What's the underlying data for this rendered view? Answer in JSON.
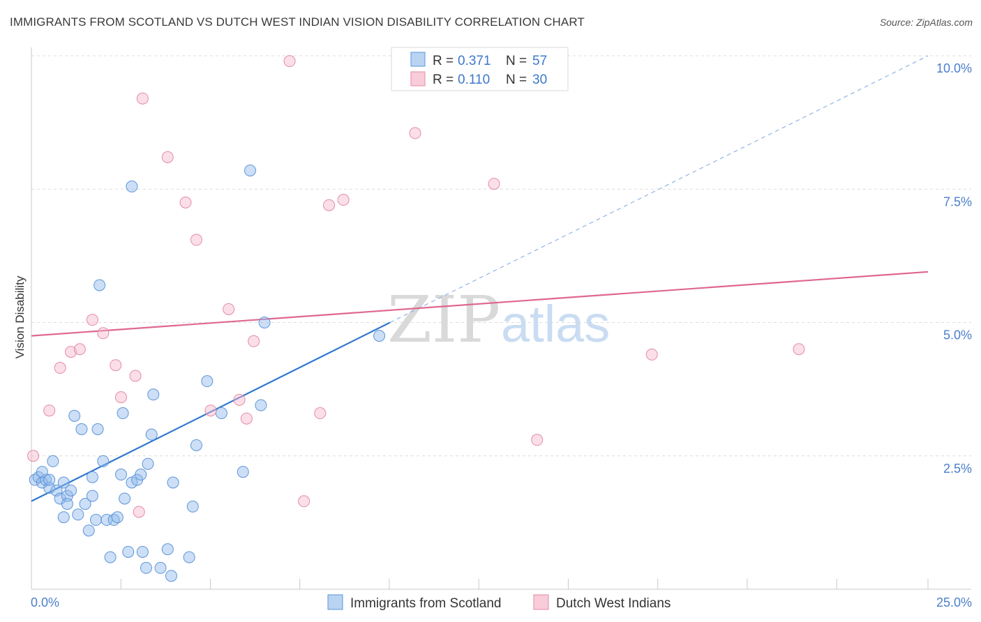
{
  "title": "IMMIGRANTS FROM SCOTLAND VS DUTCH WEST INDIAN VISION DISABILITY CORRELATION CHART",
  "source": "Source: ZipAtlas.com",
  "watermark": {
    "zip": "ZIP",
    "atlas": "atlas"
  },
  "chart_data": {
    "type": "scatter",
    "ylabel": "Vision Disability",
    "xlabel": "",
    "xlim": [
      0,
      25
    ],
    "ylim": [
      0,
      10.5
    ],
    "x_tick_labels": [
      {
        "value": 0,
        "label": "0.0%"
      },
      {
        "value": 25,
        "label": "25.0%"
      }
    ],
    "y_tick_labels": [
      {
        "value": 2.5,
        "label": "2.5%"
      },
      {
        "value": 5.0,
        "label": "5.0%"
      },
      {
        "value": 7.5,
        "label": "7.5%"
      },
      {
        "value": 10.0,
        "label": "10.0%"
      }
    ],
    "x_minor_ticks": [
      2.5,
      5,
      7.5,
      10,
      12.5,
      15,
      17.5,
      20,
      22.5,
      25
    ],
    "legend": [
      {
        "r_label": "R = ",
        "r_value": "0.371",
        "n_label": "N = ",
        "n_value": "57"
      },
      {
        "r_label": "R = ",
        "r_value": "0.110",
        "n_label": "N = ",
        "n_value": "30"
      }
    ],
    "series": [
      {
        "name": "Immigrants from Scotland",
        "color": "#8db8ea",
        "stroke": "#5d95d8",
        "trend_color": "#2f78d0",
        "trend": {
          "x0": 0,
          "y0": 1.65,
          "x1": 10,
          "y1": 5.0,
          "dash_x1": 25,
          "dash_y1": 10.0
        },
        "points": [
          [
            0.1,
            2.05
          ],
          [
            0.2,
            2.1
          ],
          [
            0.3,
            2.0
          ],
          [
            0.4,
            2.05
          ],
          [
            0.5,
            1.9
          ],
          [
            0.6,
            2.4
          ],
          [
            0.7,
            1.85
          ],
          [
            0.8,
            1.7
          ],
          [
            0.9,
            2.0
          ],
          [
            1.0,
            1.75
          ],
          [
            1.1,
            1.85
          ],
          [
            1.2,
            3.25
          ],
          [
            1.3,
            1.4
          ],
          [
            1.4,
            3.0
          ],
          [
            1.5,
            1.6
          ],
          [
            1.6,
            1.1
          ],
          [
            1.7,
            1.75
          ],
          [
            1.8,
            1.3
          ],
          [
            1.85,
            3.0
          ],
          [
            2.0,
            2.4
          ],
          [
            2.1,
            1.3
          ],
          [
            2.2,
            0.6
          ],
          [
            2.3,
            1.3
          ],
          [
            2.4,
            1.35
          ],
          [
            2.5,
            2.15
          ],
          [
            2.55,
            3.3
          ],
          [
            2.6,
            1.7
          ],
          [
            2.7,
            0.7
          ],
          [
            2.8,
            2.0
          ],
          [
            2.95,
            2.05
          ],
          [
            3.05,
            2.15
          ],
          [
            3.1,
            0.7
          ],
          [
            3.2,
            0.4
          ],
          [
            3.25,
            2.35
          ],
          [
            3.35,
            2.9
          ],
          [
            3.4,
            3.65
          ],
          [
            3.6,
            0.4
          ],
          [
            3.8,
            0.75
          ],
          [
            3.9,
            0.25
          ],
          [
            3.95,
            2.0
          ],
          [
            4.4,
            0.6
          ],
          [
            4.5,
            1.55
          ],
          [
            4.6,
            2.7
          ],
          [
            4.9,
            3.9
          ],
          [
            5.3,
            3.3
          ],
          [
            5.9,
            2.2
          ],
          [
            6.1,
            7.85
          ],
          [
            6.5,
            5.0
          ],
          [
            6.4,
            3.45
          ],
          [
            9.7,
            4.75
          ],
          [
            1.9,
            5.7
          ],
          [
            1.7,
            2.1
          ],
          [
            2.8,
            7.55
          ],
          [
            1.0,
            1.6
          ],
          [
            0.5,
            2.05
          ],
          [
            0.3,
            2.2
          ],
          [
            0.9,
            1.35
          ]
        ]
      },
      {
        "name": "Dutch West Indians",
        "color": "#f5b8cb",
        "stroke": "#e58aa6",
        "trend_color": "#e0678f",
        "trend": {
          "x0": 0,
          "y0": 4.75,
          "x1": 25,
          "y1": 5.95
        },
        "points": [
          [
            0.05,
            2.5
          ],
          [
            0.5,
            3.35
          ],
          [
            0.8,
            4.15
          ],
          [
            1.1,
            4.45
          ],
          [
            1.35,
            4.5
          ],
          [
            1.7,
            5.05
          ],
          [
            2.0,
            4.8
          ],
          [
            2.35,
            4.2
          ],
          [
            2.5,
            3.6
          ],
          [
            2.9,
            4.0
          ],
          [
            3.0,
            1.45
          ],
          [
            3.1,
            9.2
          ],
          [
            3.8,
            8.1
          ],
          [
            4.3,
            7.25
          ],
          [
            4.6,
            6.55
          ],
          [
            5.0,
            3.35
          ],
          [
            5.5,
            5.25
          ],
          [
            5.8,
            3.55
          ],
          [
            6.0,
            3.2
          ],
          [
            6.2,
            4.65
          ],
          [
            7.2,
            9.9
          ],
          [
            7.6,
            1.65
          ],
          [
            8.05,
            3.3
          ],
          [
            8.3,
            7.2
          ],
          [
            8.7,
            7.3
          ],
          [
            10.7,
            8.55
          ],
          [
            12.9,
            7.6
          ],
          [
            14.1,
            2.8
          ],
          [
            17.3,
            4.4
          ],
          [
            21.4,
            4.5
          ]
        ]
      }
    ]
  }
}
